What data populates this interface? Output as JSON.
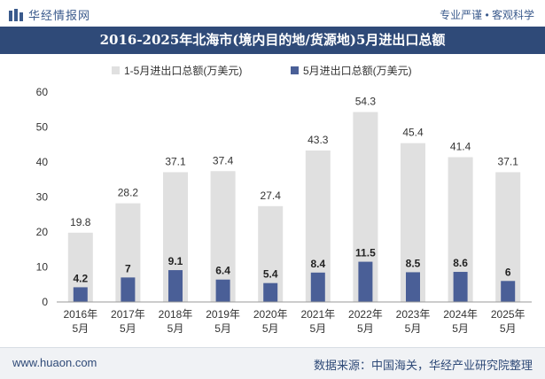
{
  "header": {
    "brand_name": "华经情报网",
    "tagline": "专业严谨 • 客观科学",
    "title": "2016-2025年北海市(境内目的地/货源地)5月进出口总额"
  },
  "footer": {
    "url": "www.huaon.com",
    "source": "数据来源：中国海关，华经产业研究院整理"
  },
  "colors": {
    "title_bg": "#2f4a78",
    "series_cumulative": "#e0e0e0",
    "series_may": "#4a5f97"
  },
  "chart_data": {
    "type": "bar",
    "title": "2016-2025年北海市(境内目的地/货源地)5月进出口总额",
    "categories": [
      [
        "2016年",
        "5月"
      ],
      [
        "2017年",
        "5月"
      ],
      [
        "2018年",
        "5月"
      ],
      [
        "2019年",
        "5月"
      ],
      [
        "2020年",
        "5月"
      ],
      [
        "2021年",
        "5月"
      ],
      [
        "2022年",
        "5月"
      ],
      [
        "2023年",
        "5月"
      ],
      [
        "2024年",
        "5月"
      ],
      [
        "2025年",
        "5月"
      ]
    ],
    "series": [
      {
        "name": "1-5月进出口总额(万美元)",
        "values": [
          19.8,
          28.2,
          37.1,
          37.4,
          27.4,
          43.3,
          54.3,
          45.4,
          41.4,
          37.1
        ]
      },
      {
        "name": "5月进出口总额(万美元)",
        "values": [
          4.2,
          7,
          9.1,
          6.4,
          5.4,
          8.4,
          11.5,
          8.5,
          8.6,
          6
        ]
      }
    ],
    "ylim": [
      0,
      60
    ],
    "yticks": [
      0,
      10,
      20,
      30,
      40,
      50,
      60
    ],
    "legend_position": "top",
    "grid": false
  }
}
